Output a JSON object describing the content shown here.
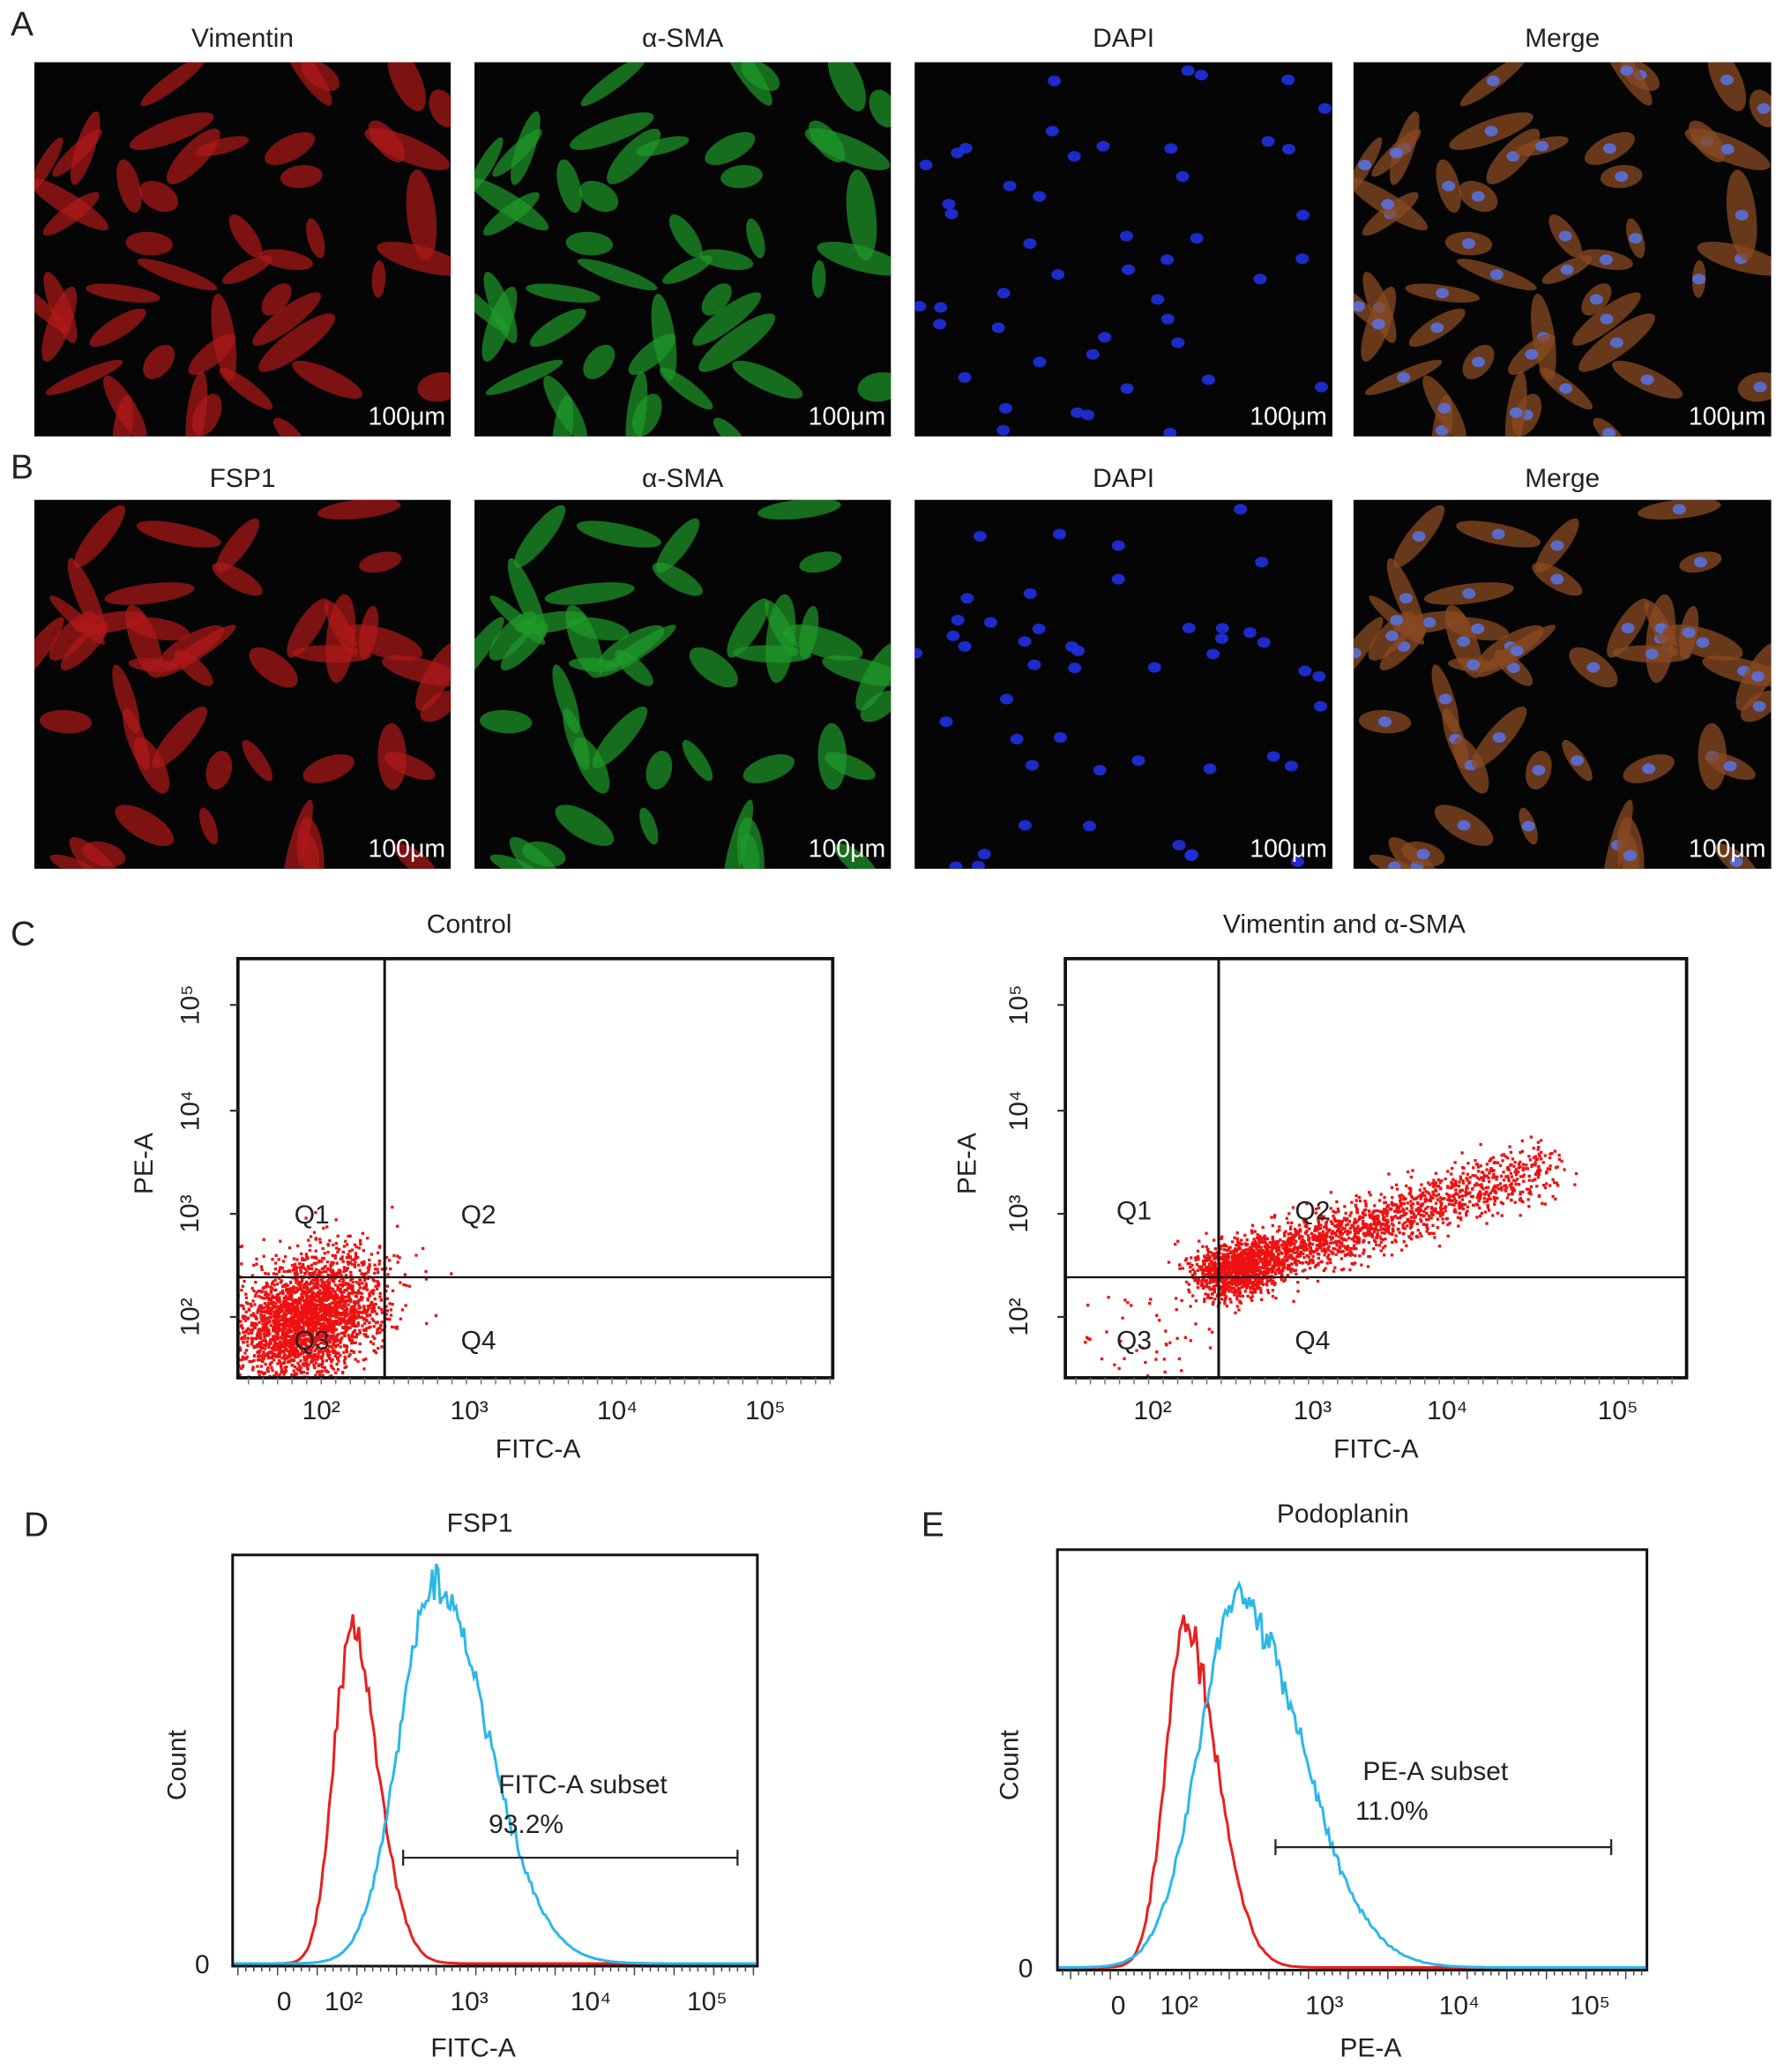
{
  "micrographs": {
    "rows": [
      {
        "label": "A",
        "titles": [
          "Vimentin",
          "α-SMA",
          "DAPI",
          "Merge"
        ]
      },
      {
        "label": "B",
        "titles": [
          "FSP1",
          "α-SMA",
          "DAPI",
          "Merge"
        ]
      }
    ],
    "scale_bar": "100μm"
  },
  "flow": {
    "label": "C",
    "plots": [
      {
        "title": "Control",
        "x_label": "FITC-A",
        "y_label": "PE-A",
        "x_ticks": [
          "10²",
          "10³",
          "10⁴",
          "10⁵"
        ],
        "y_ticks": [
          "10⁵",
          "10⁴",
          "10³",
          "10²"
        ],
        "quadrants": [
          "Q1",
          "Q2",
          "Q3",
          "Q4"
        ]
      },
      {
        "title": "Vimentin and α-SMA",
        "x_label": "FITC-A",
        "y_label": "PE-A",
        "x_ticks": [
          "10²",
          "10³",
          "10⁴",
          "10⁵"
        ],
        "y_ticks": [
          "10⁵",
          "10⁴",
          "10³",
          "10²"
        ],
        "quadrants": [
          "Q1",
          "Q2",
          "Q3",
          "Q4"
        ]
      }
    ]
  },
  "histograms": [
    {
      "label": "D",
      "title": "FSP1",
      "y_label": "Count",
      "y_tick": "0",
      "x_ticks": [
        "0",
        "10²",
        "10³",
        "10⁴",
        "10⁵"
      ],
      "x_label": "FITC-A",
      "gate_label": "FITC-A subset",
      "gate_value": "93.2%"
    },
    {
      "label": "E",
      "title": "Podoplanin",
      "y_label": "Count",
      "y_tick": "0",
      "x_ticks": [
        "0",
        "10²",
        "10³",
        "10⁴",
        "10⁵"
      ],
      "x_label": "PE-A",
      "gate_label": "PE-A subset",
      "gate_value": "11.0%"
    }
  ]
}
